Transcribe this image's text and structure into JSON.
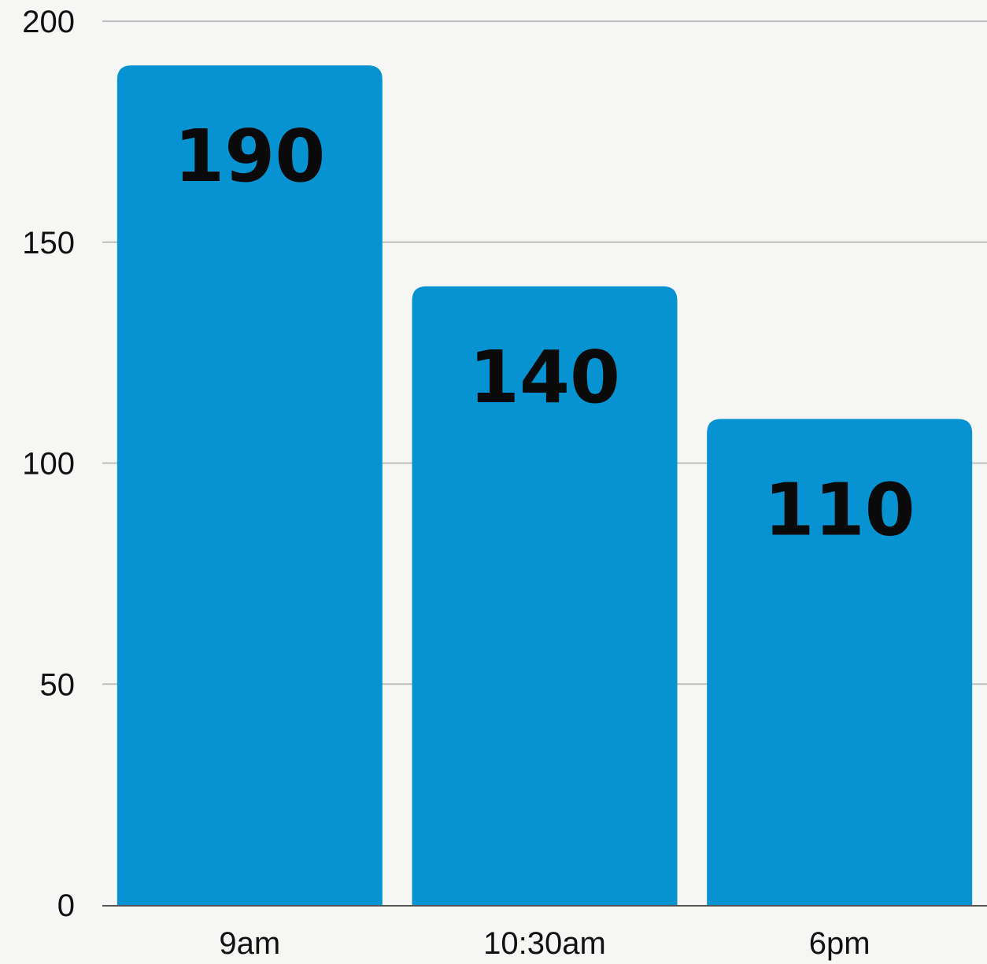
{
  "chart_data": {
    "type": "bar",
    "title": "",
    "xlabel": "",
    "ylabel": "",
    "categories": [
      "9am",
      "10:30am",
      "6pm"
    ],
    "values": [
      190,
      140,
      110
    ],
    "value_labels": [
      "190",
      "140",
      "110"
    ],
    "ylim": [
      0,
      200
    ],
    "yticks": [
      0,
      50,
      100,
      150,
      200
    ],
    "ytick_labels": [
      "0",
      "50",
      "100",
      "150",
      "200"
    ],
    "grid": true,
    "legend": "none",
    "colors": {
      "bar": "#0793d1",
      "grid": "#bdbdbd",
      "axis": "#555555",
      "background": "#f6f6f4",
      "text": "#111111"
    }
  }
}
